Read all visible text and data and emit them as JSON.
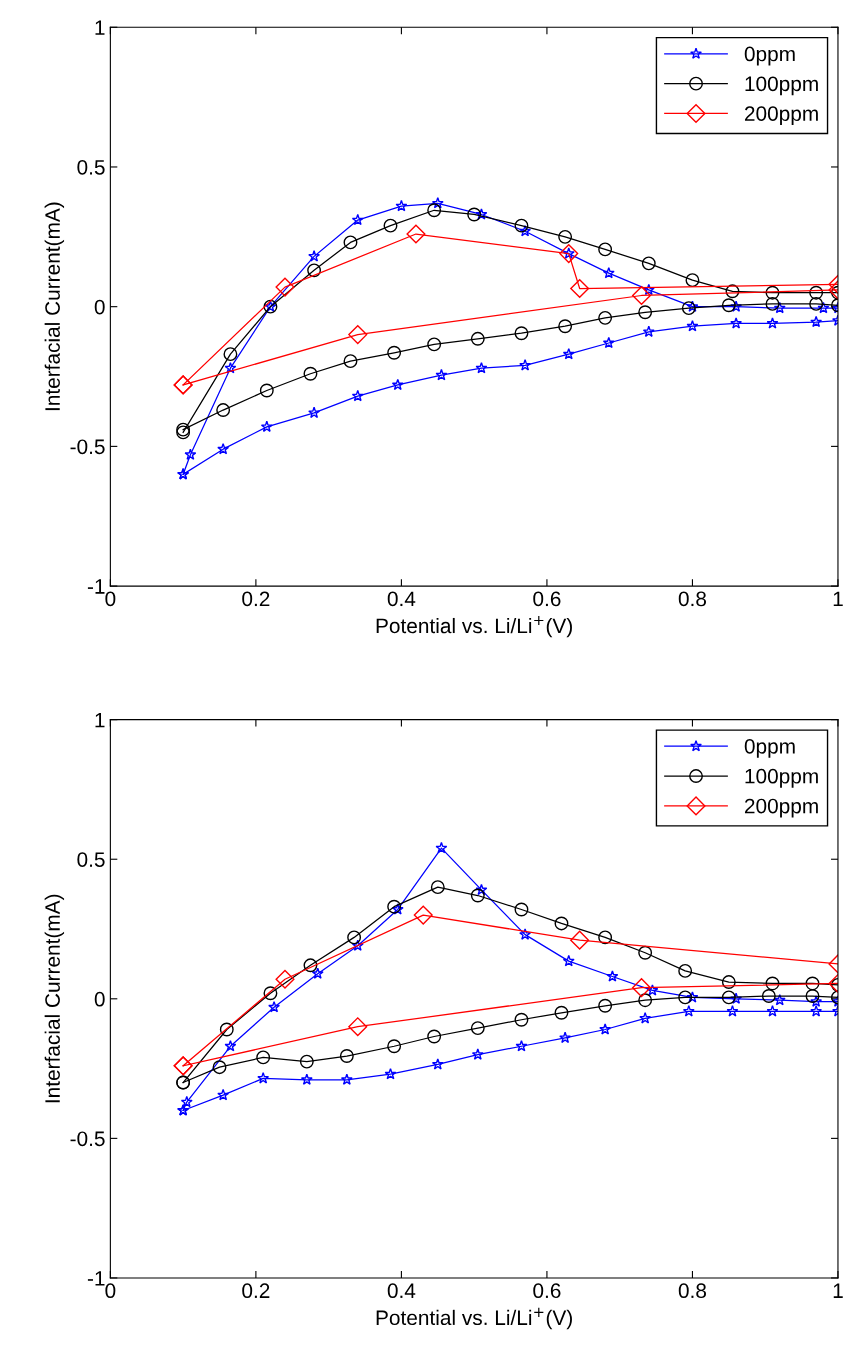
{
  "chart_data": [
    {
      "type": "line",
      "xlabel": "Potential vs. Li/Li$^{+}$(V)",
      "ylabel": "Interfacial Current(mA)",
      "xlim": [
        0,
        1
      ],
      "ylim": [
        -1,
        1
      ],
      "xticks": [
        0,
        0.2,
        0.4,
        0.6,
        0.8,
        1
      ],
      "yticks": [
        -1,
        -0.5,
        0,
        0.5,
        1
      ],
      "legend": "top right",
      "grid": false,
      "series": [
        {
          "name": "0ppm",
          "color": "#0000ff",
          "marker": "star",
          "x": [
            0.1,
            0.11,
            0.165,
            0.22,
            0.28,
            0.34,
            0.4,
            0.45,
            0.51,
            0.57,
            0.63,
            0.685,
            0.74,
            0.8,
            0.86,
            0.92,
            0.98,
            1.0
          ],
          "values": [
            -0.6,
            -0.53,
            -0.22,
            0.0,
            0.18,
            0.31,
            0.36,
            0.37,
            0.33,
            0.27,
            0.19,
            0.12,
            0.06,
            0.0,
            0.0,
            -0.005,
            -0.005,
            -0.005
          ]
        },
        {
          "color": "#0000ff",
          "marker": "star",
          "x": [
            0.1,
            0.155,
            0.215,
            0.28,
            0.34,
            0.395,
            0.455,
            0.51,
            0.57,
            0.63,
            0.685,
            0.74,
            0.8,
            0.86,
            0.91,
            0.97,
            1.0
          ],
          "values": [
            -0.6,
            -0.51,
            -0.43,
            -0.38,
            -0.32,
            -0.28,
            -0.245,
            -0.22,
            -0.21,
            -0.17,
            -0.13,
            -0.09,
            -0.07,
            -0.06,
            -0.06,
            -0.055,
            -0.05
          ]
        },
        {
          "name": "100ppm",
          "color": "#000000",
          "marker": "circle",
          "x": [
            0.1,
            0.165,
            0.22,
            0.28,
            0.33,
            0.385,
            0.445,
            0.5,
            0.565,
            0.625,
            0.68,
            0.74,
            0.8,
            0.855,
            0.91,
            0.97,
            1.0
          ],
          "values": [
            -0.45,
            -0.17,
            0.0,
            0.13,
            0.23,
            0.29,
            0.345,
            0.33,
            0.29,
            0.25,
            0.205,
            0.155,
            0.095,
            0.055,
            0.05,
            0.05,
            0.05
          ]
        },
        {
          "color": "#000000",
          "marker": "circle",
          "x": [
            0.1,
            0.155,
            0.215,
            0.275,
            0.33,
            0.39,
            0.445,
            0.505,
            0.565,
            0.625,
            0.68,
            0.735,
            0.795,
            0.85,
            0.91,
            0.97,
            1.0
          ],
          "values": [
            -0.44,
            -0.37,
            -0.3,
            -0.24,
            -0.195,
            -0.165,
            -0.135,
            -0.115,
            -0.095,
            -0.07,
            -0.04,
            -0.02,
            -0.005,
            0.005,
            0.01,
            0.01,
            0.005
          ]
        },
        {
          "name": "200ppm",
          "color": "#ff0000",
          "marker": "diamond",
          "x": [
            0.1,
            0.24,
            0.42,
            0.63,
            0.645,
            1.0
          ],
          "values": [
            -0.28,
            0.07,
            0.26,
            0.19,
            0.065,
            0.08
          ]
        },
        {
          "color": "#ff0000",
          "marker": "diamond",
          "x": [
            0.1,
            0.34,
            0.73,
            1.0
          ],
          "values": [
            -0.28,
            -0.1,
            0.04,
            0.06
          ]
        }
      ]
    },
    {
      "type": "line",
      "xlabel": "Potential vs. Li/Li$^{+}$(V)",
      "ylabel": "Interfacial Current(mA)",
      "xlim": [
        0,
        1
      ],
      "ylim": [
        -1,
        1
      ],
      "xticks": [
        0,
        0.2,
        0.4,
        0.6,
        0.8,
        1
      ],
      "yticks": [
        -1,
        -0.5,
        0,
        0.5,
        1
      ],
      "legend": "top right",
      "grid": false,
      "series": [
        {
          "name": "0ppm",
          "color": "#0000ff",
          "marker": "star",
          "x": [
            0.1,
            0.105,
            0.165,
            0.225,
            0.285,
            0.34,
            0.395,
            0.455,
            0.51,
            0.57,
            0.63,
            0.69,
            0.745,
            0.8,
            0.86,
            0.92,
            0.97,
            1.0
          ],
          "values": [
            -0.4,
            -0.37,
            -0.17,
            -0.03,
            0.09,
            0.19,
            0.32,
            0.54,
            0.39,
            0.23,
            0.135,
            0.08,
            0.03,
            0.005,
            0.0,
            -0.005,
            -0.01,
            -0.01
          ]
        },
        {
          "color": "#0000ff",
          "marker": "star",
          "x": [
            0.1,
            0.155,
            0.21,
            0.27,
            0.325,
            0.385,
            0.45,
            0.505,
            0.565,
            0.625,
            0.68,
            0.735,
            0.795,
            0.855,
            0.91,
            0.97,
            1.0
          ],
          "values": [
            -0.4,
            -0.345,
            -0.285,
            -0.29,
            -0.29,
            -0.27,
            -0.235,
            -0.2,
            -0.17,
            -0.14,
            -0.11,
            -0.07,
            -0.045,
            -0.045,
            -0.045,
            -0.045,
            -0.045
          ]
        },
        {
          "name": "100ppm",
          "color": "#000000",
          "marker": "circle",
          "x": [
            0.1,
            0.16,
            0.22,
            0.275,
            0.335,
            0.39,
            0.45,
            0.505,
            0.565,
            0.62,
            0.68,
            0.735,
            0.79,
            0.85,
            0.91,
            0.965,
            1.0
          ],
          "values": [
            -0.3,
            -0.11,
            0.02,
            0.12,
            0.22,
            0.33,
            0.4,
            0.37,
            0.32,
            0.27,
            0.22,
            0.165,
            0.1,
            0.06,
            0.055,
            0.055,
            0.05
          ]
        },
        {
          "color": "#000000",
          "marker": "circle",
          "x": [
            0.1,
            0.15,
            0.21,
            0.27,
            0.325,
            0.39,
            0.445,
            0.505,
            0.565,
            0.62,
            0.68,
            0.735,
            0.79,
            0.85,
            0.905,
            0.965,
            1.0
          ],
          "values": [
            -0.3,
            -0.245,
            -0.21,
            -0.225,
            -0.205,
            -0.17,
            -0.135,
            -0.105,
            -0.075,
            -0.05,
            -0.025,
            -0.005,
            0.005,
            0.005,
            0.01,
            0.01,
            0.005
          ]
        },
        {
          "name": "200ppm",
          "color": "#ff0000",
          "marker": "diamond",
          "x": [
            0.1,
            0.24,
            0.43,
            0.645,
            1.0
          ],
          "values": [
            -0.24,
            0.07,
            0.3,
            0.21,
            0.125
          ]
        },
        {
          "color": "#ff0000",
          "marker": "diamond",
          "x": [
            0.1,
            0.34,
            0.73,
            1.0
          ],
          "values": [
            -0.24,
            -0.1,
            0.04,
            0.055
          ]
        }
      ]
    }
  ]
}
